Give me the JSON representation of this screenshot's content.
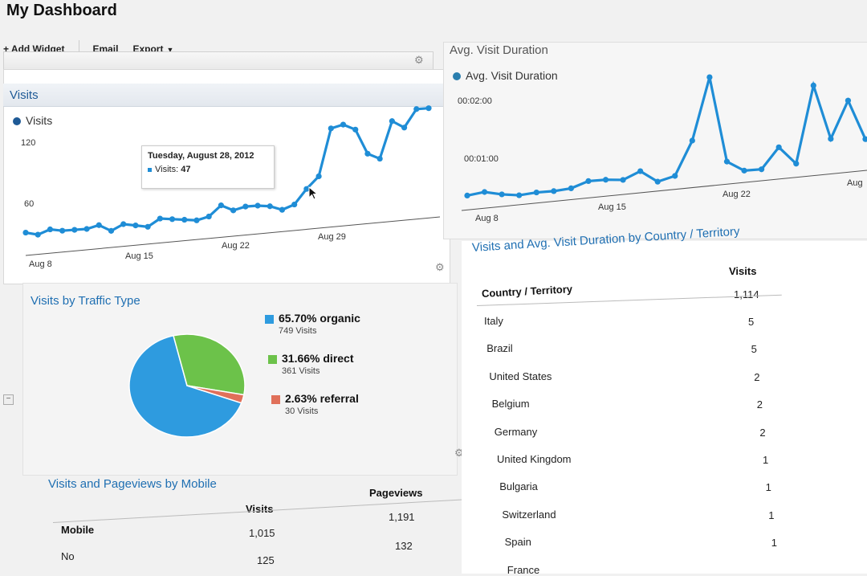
{
  "header": {
    "title": "My Dashboard"
  },
  "toolbar": {
    "add_widget": "+ Add Widget",
    "email": "Email",
    "export": "Export"
  },
  "visits_widget": {
    "title": "Visits",
    "legend": "Visits",
    "y_ticks": [
      "120",
      "60"
    ],
    "x_ticks": [
      "Aug 8",
      "Aug 15",
      "Aug 22",
      "Aug 29"
    ],
    "tooltip": {
      "date": "Tuesday, August 28, 2012",
      "label": "Visits:",
      "value": "47"
    }
  },
  "traffic_widget": {
    "title": "Visits by Traffic Type",
    "items": [
      {
        "pct": "65.70% organic",
        "sub": "749 Visits",
        "color": "#2e9bdf"
      },
      {
        "pct": "31.66% direct",
        "sub": "361 Visits",
        "color": "#6cc24a"
      },
      {
        "pct": "2.63% referral",
        "sub": "30 Visits",
        "color": "#e0705a"
      }
    ]
  },
  "mobile_widget": {
    "title": "Visits and Pageviews by Mobile",
    "col_label": "Mobile",
    "col_visits": "Visits",
    "col_pageviews": "Pageviews",
    "totals": {
      "visits": "1,015",
      "pageviews": "1,191"
    },
    "rows": [
      {
        "label": "No",
        "visits": "125",
        "pageviews": "132"
      }
    ]
  },
  "avg_duration_widget": {
    "title": "Avg. Visit Duration",
    "legend": "Avg. Visit Duration",
    "y_ticks": [
      "00:02:00",
      "00:01:00"
    ],
    "x_ticks": [
      "Aug 8",
      "Aug 15",
      "Aug 22",
      "Aug"
    ]
  },
  "country_widget": {
    "title": "Visits and Avg. Visit Duration by Country / Territory",
    "col_country": "Country / Territory",
    "col_visits": "Visits",
    "total": "1,114",
    "rows": [
      {
        "country": "Italy",
        "visits": "5"
      },
      {
        "country": "Brazil",
        "visits": "5"
      },
      {
        "country": "United States",
        "visits": "2"
      },
      {
        "country": "Belgium",
        "visits": "2"
      },
      {
        "country": "Germany",
        "visits": "2"
      },
      {
        "country": "United Kingdom",
        "visits": "1"
      },
      {
        "country": "Bulgaria",
        "visits": "1"
      },
      {
        "country": "Switzerland",
        "visits": "1"
      },
      {
        "country": "Spain",
        "visits": "1"
      },
      {
        "country": "France",
        "visits": ""
      }
    ]
  },
  "chart_data": [
    {
      "type": "line",
      "series": [
        {
          "name": "Visits",
          "values": [
            18,
            14,
            20,
            17,
            17,
            17,
            21,
            12,
            20,
            17,
            14,
            24,
            22,
            20,
            18,
            22,
            36,
            28,
            32,
            32,
            30,
            24,
            30,
            50,
            66,
            130,
            134,
            126,
            92,
            84,
            134,
            124,
            148,
            148
          ]
        }
      ],
      "ylim": [
        0,
        160
      ],
      "color": "#1f8dd6"
    },
    {
      "type": "line",
      "series": [
        {
          "name": "Avg. Visit Duration",
          "values_seconds": [
            5,
            8,
            3,
            0,
            2,
            2,
            4,
            12,
            12,
            10,
            20,
            4,
            10,
            56,
            140,
            24,
            10,
            10,
            38,
            14,
            118,
            44,
            94,
            40
          ]
        }
      ],
      "y_tick_values_seconds": [
        120,
        60
      ],
      "color": "#1f8dd6"
    },
    {
      "type": "pie",
      "labels": [
        "organic",
        "direct",
        "referral"
      ],
      "values": [
        65.7,
        31.66,
        2.63
      ],
      "colors": [
        "#2e9bdf",
        "#6cc24a",
        "#e0705a"
      ]
    }
  ]
}
